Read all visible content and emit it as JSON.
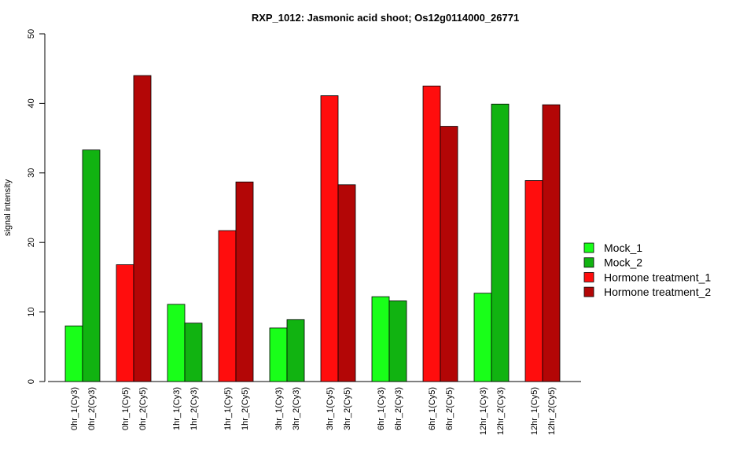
{
  "chart_data": {
    "type": "bar",
    "title": "RXP_1012: Jasmonic acid shoot; Os12g0114000_26771",
    "xlabel": "",
    "ylabel": "signal intensity",
    "ylim": [
      0,
      50
    ],
    "yticks": [
      0,
      10,
      20,
      30,
      40,
      50
    ],
    "grid": false,
    "legend_position": "right",
    "series": [
      {
        "name": "Mock_1",
        "color": "#19FF19"
      },
      {
        "name": "Mock_2",
        "color": "#11B311"
      },
      {
        "name": "Hormone treatment_1",
        "color": "#FF0D0D"
      },
      {
        "name": "Hormone treatment_2",
        "color": "#B30606"
      }
    ],
    "groups": [
      {
        "bars": [
          {
            "label": "0hr_1(Cy3)",
            "value": 8.0,
            "series": 0
          },
          {
            "label": "0hr_2(Cy3)",
            "value": 33.3,
            "series": 1
          }
        ]
      },
      {
        "bars": [
          {
            "label": "0hr_1(Cy5)",
            "value": 16.8,
            "series": 2
          },
          {
            "label": "0hr_2(Cy5)",
            "value": 44.0,
            "series": 3
          }
        ]
      },
      {
        "bars": [
          {
            "label": "1hr_1(Cy3)",
            "value": 11.1,
            "series": 0
          },
          {
            "label": "1hr_2(Cy3)",
            "value": 8.4,
            "series": 1
          }
        ]
      },
      {
        "bars": [
          {
            "label": "1hr_1(Cy5)",
            "value": 21.7,
            "series": 2
          },
          {
            "label": "1hr_2(Cy5)",
            "value": 28.7,
            "series": 3
          }
        ]
      },
      {
        "bars": [
          {
            "label": "3hr_1(Cy3)",
            "value": 7.7,
            "series": 0
          },
          {
            "label": "3hr_2(Cy3)",
            "value": 8.9,
            "series": 1
          }
        ]
      },
      {
        "bars": [
          {
            "label": "3hr_1(Cy5)",
            "value": 41.1,
            "series": 2
          },
          {
            "label": "3hr_2(Cy5)",
            "value": 28.3,
            "series": 3
          }
        ]
      },
      {
        "bars": [
          {
            "label": "6hr_1(Cy3)",
            "value": 12.2,
            "series": 0
          },
          {
            "label": "6hr_2(Cy3)",
            "value": 11.6,
            "series": 1
          }
        ]
      },
      {
        "bars": [
          {
            "label": "6hr_1(Cy5)",
            "value": 42.5,
            "series": 2
          },
          {
            "label": "6hr_2(Cy5)",
            "value": 36.7,
            "series": 3
          }
        ]
      },
      {
        "bars": [
          {
            "label": "12hr_1(Cy3)",
            "value": 12.7,
            "series": 0
          },
          {
            "label": "12hr_2(Cy3)",
            "value": 39.9,
            "series": 1
          }
        ]
      },
      {
        "bars": [
          {
            "label": "12hr_1(Cy5)",
            "value": 28.9,
            "series": 2
          },
          {
            "label": "12hr_2(Cy5)",
            "value": 39.8,
            "series": 3
          }
        ]
      }
    ]
  }
}
